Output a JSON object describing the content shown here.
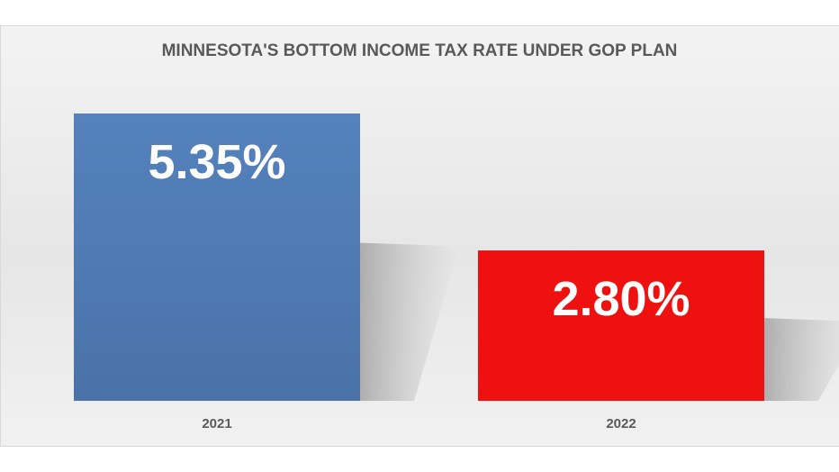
{
  "chart_data": {
    "type": "bar",
    "title": "MINNESOTA'S BOTTOM INCOME TAX RATE UNDER GOP PLAN",
    "categories": [
      "2021",
      "2022"
    ],
    "values": [
      5.35,
      2.8
    ],
    "data_labels": [
      "5.35%",
      "2.80%"
    ],
    "colors": [
      "#4f7ab2",
      "#ef1010"
    ],
    "unit": "%",
    "ylim": [
      0,
      5.35
    ],
    "grid": false,
    "legend": "none"
  }
}
